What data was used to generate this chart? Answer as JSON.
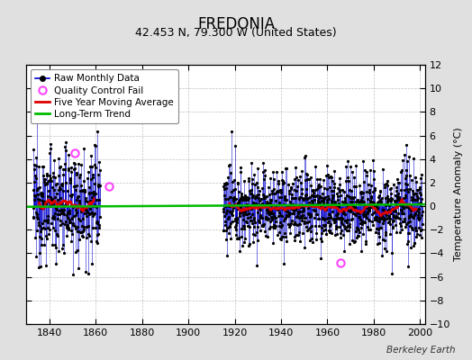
{
  "title": "FREDONIA",
  "subtitle": "42.453 N, 79.300 W (United States)",
  "ylabel": "Temperature Anomaly (°C)",
  "credit": "Berkeley Earth",
  "xlim": [
    1830,
    2002
  ],
  "ylim": [
    -10,
    12
  ],
  "yticks": [
    -10,
    -8,
    -6,
    -4,
    -2,
    0,
    2,
    4,
    6,
    8,
    10,
    12
  ],
  "xticks": [
    1840,
    1860,
    1880,
    1900,
    1920,
    1940,
    1960,
    1980,
    2000
  ],
  "background_color": "#e0e0e0",
  "plot_bg_color": "#ffffff",
  "grid_color": "#c0c0c0",
  "data_color": "#0000cc",
  "qc_color": "#ff44ff",
  "moving_avg_color": "#dd0000",
  "trend_color": "#00bb00",
  "seg1_start": 1833,
  "seg1_end": 1861,
  "seg2_start": 1915,
  "seg2_end": 2000,
  "qc_points": [
    [
      1851.0,
      4.5
    ],
    [
      1866.0,
      1.7
    ],
    [
      1965.5,
      -4.8
    ]
  ],
  "title_fontsize": 12,
  "subtitle_fontsize": 9,
  "tick_fontsize": 8,
  "ylabel_fontsize": 8,
  "legend_fontsize": 7.5,
  "credit_fontsize": 7.5
}
